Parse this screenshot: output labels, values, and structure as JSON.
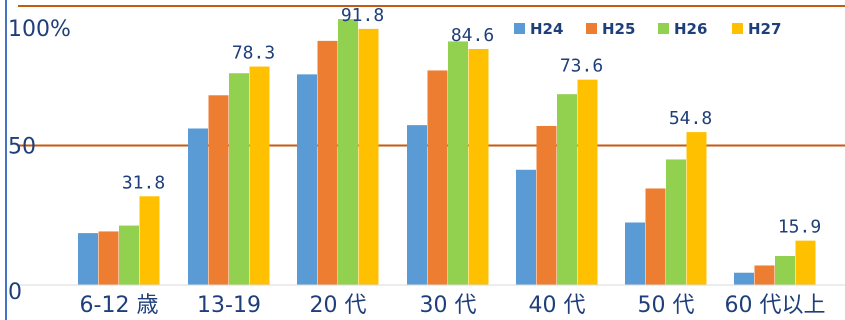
{
  "chart_data": {
    "type": "bar",
    "categories": [
      "6-12 歳",
      "13-19",
      "20 代",
      "30 代",
      "40 代",
      "50 代",
      "60 代以上"
    ],
    "series": [
      {
        "name": "H24",
        "color": "#5B9BD5",
        "values": [
          18.6,
          56.1,
          75.5,
          57.3,
          41.3,
          22.4,
          4.4
        ]
      },
      {
        "name": "H25",
        "color": "#ED7D31",
        "values": [
          19.2,
          68.0,
          87.5,
          76.9,
          57.0,
          34.6,
          7.0
        ]
      },
      {
        "name": "H26",
        "color": "#92D050",
        "values": [
          21.3,
          75.9,
          95.3,
          87.3,
          68.4,
          45.0,
          10.4
        ]
      },
      {
        "name": "H27",
        "color": "#FFC000",
        "values": [
          31.8,
          78.3,
          91.8,
          84.6,
          73.6,
          54.8,
          15.9
        ]
      }
    ],
    "data_labels": {
      "series": "H27",
      "values": [
        "31.8",
        "78.3",
        "91.8",
        "84.6",
        "73.6",
        "54.8",
        "15.9"
      ]
    },
    "y_ticks": [
      {
        "value": 0,
        "label": "0"
      },
      {
        "value": 50,
        "label": "50"
      },
      {
        "value": 100,
        "label": "100%"
      }
    ],
    "ylim": [
      0,
      100
    ],
    "grid": true,
    "gridline_color": "#C55A11",
    "legend_position": "top-right",
    "title": "",
    "xlabel": "",
    "ylabel": ""
  }
}
